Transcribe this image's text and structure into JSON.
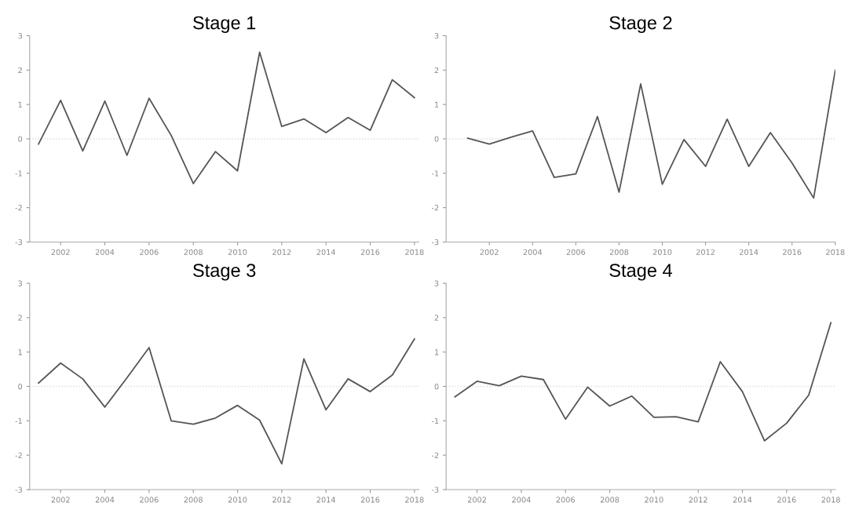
{
  "chart_data": [
    {
      "type": "line",
      "title": "Stage 1",
      "x": [
        2001,
        2002,
        2003,
        2004,
        2005,
        2006,
        2007,
        2008,
        2009,
        2010,
        2011,
        2012,
        2013,
        2014,
        2015,
        2016,
        2017,
        2018
      ],
      "values": [
        -0.15,
        1.12,
        -0.35,
        1.1,
        -0.48,
        1.18,
        0.1,
        -1.3,
        -0.37,
        -0.93,
        2.52,
        0.36,
        0.58,
        0.18,
        0.62,
        0.25,
        1.72,
        1.2
      ],
      "color": "#555555",
      "xlim": [
        2000.6,
        2018.2
      ],
      "ylim": [
        -3,
        3
      ],
      "xticks": [
        2002,
        2004,
        2006,
        2008,
        2010,
        2012,
        2014,
        2016,
        2018
      ],
      "yticks": [
        -3,
        -2,
        -1,
        0,
        1,
        2,
        3
      ],
      "ref_lines": [
        {
          "axis": "y",
          "value": 0,
          "color": "#d9d9d9",
          "line_style": "dotted"
        }
      ],
      "grid": false,
      "legend": false,
      "marker": "none",
      "line_style": "solid"
    },
    {
      "type": "line",
      "title": "Stage 2",
      "x": [
        2001,
        2002,
        2003,
        2004,
        2005,
        2006,
        2007,
        2008,
        2009,
        2010,
        2011,
        2012,
        2013,
        2014,
        2015,
        2016,
        2017,
        2018
      ],
      "values": [
        0.02,
        -0.15,
        0.05,
        0.23,
        -1.12,
        -1.02,
        0.65,
        -1.55,
        1.6,
        -1.32,
        -0.02,
        -0.8,
        0.57,
        -0.8,
        0.18,
        -0.7,
        -1.72,
        2.0
      ],
      "color": "#555555",
      "xlim": [
        2000,
        2018
      ],
      "ylim": [
        -3,
        3
      ],
      "xticks": [
        2002,
        2004,
        2006,
        2008,
        2010,
        2012,
        2014,
        2016,
        2018
      ],
      "yticks": [
        -3,
        -2,
        -1,
        0,
        1,
        2,
        3
      ],
      "ref_lines": [
        {
          "axis": "y",
          "value": 0,
          "color": "#d9d9d9",
          "line_style": "dotted"
        }
      ],
      "grid": false,
      "legend": false,
      "marker": "none",
      "line_style": "solid"
    },
    {
      "type": "line",
      "title": "Stage 3",
      "x": [
        2001,
        2002,
        2003,
        2004,
        2005,
        2006,
        2007,
        2008,
        2009,
        2010,
        2011,
        2012,
        2013,
        2014,
        2015,
        2016,
        2017,
        2018
      ],
      "values": [
        0.1,
        0.68,
        0.22,
        -0.6,
        0.25,
        1.13,
        -1.0,
        -1.1,
        -0.92,
        -0.55,
        -0.98,
        -2.25,
        0.8,
        -0.68,
        0.22,
        -0.15,
        0.33,
        1.38
      ],
      "color": "#555555",
      "xlim": [
        2000.6,
        2018.2
      ],
      "ylim": [
        -3,
        3
      ],
      "xticks": [
        2002,
        2004,
        2006,
        2008,
        2010,
        2012,
        2014,
        2016,
        2018
      ],
      "yticks": [
        -3,
        -2,
        -1,
        0,
        1,
        2,
        3
      ],
      "ref_lines": [
        {
          "axis": "y",
          "value": 0,
          "color": "#d9d9d9",
          "line_style": "dotted"
        }
      ],
      "grid": false,
      "legend": false,
      "marker": "none",
      "line_style": "solid"
    },
    {
      "type": "line",
      "title": "Stage 4",
      "x": [
        2001,
        2002,
        2003,
        2004,
        2005,
        2006,
        2007,
        2008,
        2009,
        2010,
        2011,
        2012,
        2013,
        2014,
        2015,
        2016,
        2017,
        2018
      ],
      "values": [
        -0.3,
        0.15,
        0.02,
        0.3,
        0.2,
        -0.95,
        -0.02,
        -0.57,
        -0.28,
        -0.9,
        -0.88,
        -1.03,
        0.72,
        -0.15,
        -1.58,
        -1.07,
        -0.25,
        1.85
      ],
      "color": "#555555",
      "xlim": [
        2000.6,
        2018.2
      ],
      "ylim": [
        -3,
        3
      ],
      "xticks": [
        2002,
        2004,
        2006,
        2008,
        2010,
        2012,
        2014,
        2016,
        2018
      ],
      "yticks": [
        -3,
        -2,
        -1,
        0,
        1,
        2,
        3
      ],
      "ref_lines": [
        {
          "axis": "y",
          "value": 0,
          "color": "#d9d9d9",
          "line_style": "dotted"
        }
      ],
      "grid": false,
      "legend": false,
      "marker": "none",
      "line_style": "solid"
    }
  ]
}
